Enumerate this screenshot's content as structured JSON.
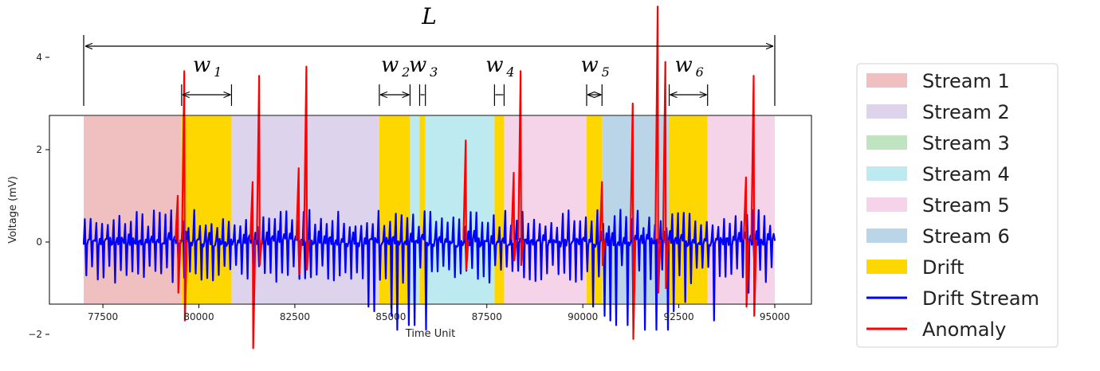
{
  "chart_data": {
    "type": "line",
    "title": "",
    "xlabel": "Time Unit",
    "ylabel": "Voltage (mV)",
    "xlim": [
      77000,
      95000
    ],
    "ylim": [
      -2.7,
      5.4
    ],
    "xticks": [
      "77500",
      "80000",
      "82500",
      "85000",
      "87500",
      "90000",
      "92500",
      "95000"
    ],
    "xtick_values": [
      77500,
      80000,
      82500,
      85000,
      87500,
      90000,
      92500,
      95000
    ],
    "yticks": [
      "−2",
      "0",
      "2",
      "4"
    ],
    "ytick_values": [
      -2,
      0,
      2,
      4
    ],
    "grid": false,
    "legend_position": "outside-right",
    "regions": [
      {
        "start": 77000,
        "end": 79550,
        "label": "Stream 1",
        "color": "#f0bfc0"
      },
      {
        "start": 79550,
        "end": 80850,
        "label": "Drift",
        "color": "#ffd700"
      },
      {
        "start": 80850,
        "end": 84700,
        "label": "Stream 2",
        "color": "#ded3ec"
      },
      {
        "start": 84700,
        "end": 85500,
        "label": "Drift",
        "color": "#ffd700"
      },
      {
        "start": 85500,
        "end": 85750,
        "label": "Stream 4",
        "color": "#bdeaf0"
      },
      {
        "start": 85750,
        "end": 85900,
        "label": "Drift",
        "color": "#ffd700"
      },
      {
        "start": 85900,
        "end": 87700,
        "label": "Stream 4",
        "color": "#bdeaf0"
      },
      {
        "start": 87700,
        "end": 87950,
        "label": "Drift",
        "color": "#ffd700"
      },
      {
        "start": 87950,
        "end": 90100,
        "label": "Stream 5",
        "color": "#f5d4ea"
      },
      {
        "start": 90100,
        "end": 90500,
        "label": "Drift",
        "color": "#ffd700"
      },
      {
        "start": 90500,
        "end": 92250,
        "label": "Stream 6",
        "color": "#bad5e8"
      },
      {
        "start": 92250,
        "end": 93250,
        "label": "Drift",
        "color": "#ffd700"
      },
      {
        "start": 93250,
        "end": 95000,
        "label": "Stream 5",
        "color": "#f5d4ea"
      }
    ],
    "drift_stream": {
      "name": "Drift Stream",
      "color": "#0000ff",
      "x_range": [
        77000,
        95000
      ],
      "baseline": 0,
      "pulse_spacing": 150,
      "upper_band": [
        0.3,
        0.7
      ],
      "lower_band": [
        -0.5,
        -0.9
      ],
      "deep_dips": [
        {
          "x": 84350,
          "y": -1.4
        },
        {
          "x": 84500,
          "y": -1.5
        },
        {
          "x": 84950,
          "y": -1.6
        },
        {
          "x": 85150,
          "y": -1.9
        },
        {
          "x": 85350,
          "y": -1.8
        },
        {
          "x": 85600,
          "y": -1.8
        },
        {
          "x": 85800,
          "y": -1.9
        },
        {
          "x": 90250,
          "y": -1.4
        },
        {
          "x": 90450,
          "y": -1.6
        },
        {
          "x": 90650,
          "y": -1.7
        },
        {
          "x": 90850,
          "y": -1.8
        },
        {
          "x": 91050,
          "y": -1.8
        },
        {
          "x": 91300,
          "y": -1.9
        },
        {
          "x": 91550,
          "y": -1.9
        },
        {
          "x": 91800,
          "y": -1.9
        },
        {
          "x": 92100,
          "y": -1.9
        },
        {
          "x": 92350,
          "y": -1.5
        },
        {
          "x": 92600,
          "y": -1.3
        },
        {
          "x": 93400,
          "y": -1.7
        },
        {
          "x": 94200,
          "y": -1.1
        }
      ]
    },
    "anomalies": {
      "name": "Anomaly",
      "color": "#ff0000",
      "spikes": [
        {
          "x": 79450,
          "high": 1.0,
          "low": -1.1
        },
        {
          "x": 79620,
          "high": 3.7,
          "low": -1.7
        },
        {
          "x": 81400,
          "high": 1.3,
          "low": -2.3
        },
        {
          "x": 81570,
          "high": 3.6,
          "low": -0.5
        },
        {
          "x": 82600,
          "high": 1.6,
          "low": -0.7
        },
        {
          "x": 82800,
          "high": 3.8,
          "low": -0.6
        },
        {
          "x": 86950,
          "high": 2.2,
          "low": -0.6
        },
        {
          "x": 88200,
          "high": 1.5,
          "low": -0.4
        },
        {
          "x": 88380,
          "high": 3.7,
          "low": -0.5
        },
        {
          "x": 90500,
          "high": 1.3,
          "low": -0.5
        },
        {
          "x": 91300,
          "high": 3.0,
          "low": -2.1
        },
        {
          "x": 91950,
          "high": 5.1,
          "low": -1.1
        },
        {
          "x": 92150,
          "high": 3.9,
          "low": -1.0
        },
        {
          "x": 94250,
          "high": 1.4,
          "low": -1.4
        },
        {
          "x": 94450,
          "high": 3.6,
          "low": -1.6
        }
      ]
    },
    "annotations": {
      "total_label": "L",
      "total_span": [
        77000,
        95000
      ],
      "windows": [
        {
          "label": "w",
          "sub": "1",
          "start": 79550,
          "end": 80850
        },
        {
          "label": "w",
          "sub": "2",
          "start": 84700,
          "end": 85500
        },
        {
          "label": "w",
          "sub": "3",
          "start": 85750,
          "end": 85900
        },
        {
          "label": "w",
          "sub": "4",
          "start": 87700,
          "end": 87950
        },
        {
          "label": "w",
          "sub": "5",
          "start": 90100,
          "end": 90500
        },
        {
          "label": "w",
          "sub": "6",
          "start": 92250,
          "end": 93250
        }
      ]
    },
    "legend": [
      {
        "label": "Stream 1",
        "kind": "patch",
        "color": "#f0bfc0"
      },
      {
        "label": "Stream 2",
        "kind": "patch",
        "color": "#ded3ec"
      },
      {
        "label": "Stream 3",
        "kind": "patch",
        "color": "#c0e4c0"
      },
      {
        "label": "Stream 4",
        "kind": "patch",
        "color": "#bdeaf0"
      },
      {
        "label": "Stream 5",
        "kind": "patch",
        "color": "#f5d4ea"
      },
      {
        "label": "Stream 6",
        "kind": "patch",
        "color": "#bad5e8"
      },
      {
        "label": "Drift",
        "kind": "patch",
        "color": "#ffd700"
      },
      {
        "label": "Drift Stream",
        "kind": "line",
        "color": "#0000ff"
      },
      {
        "label": "Anomaly",
        "kind": "line",
        "color": "#ff0000"
      }
    ]
  }
}
